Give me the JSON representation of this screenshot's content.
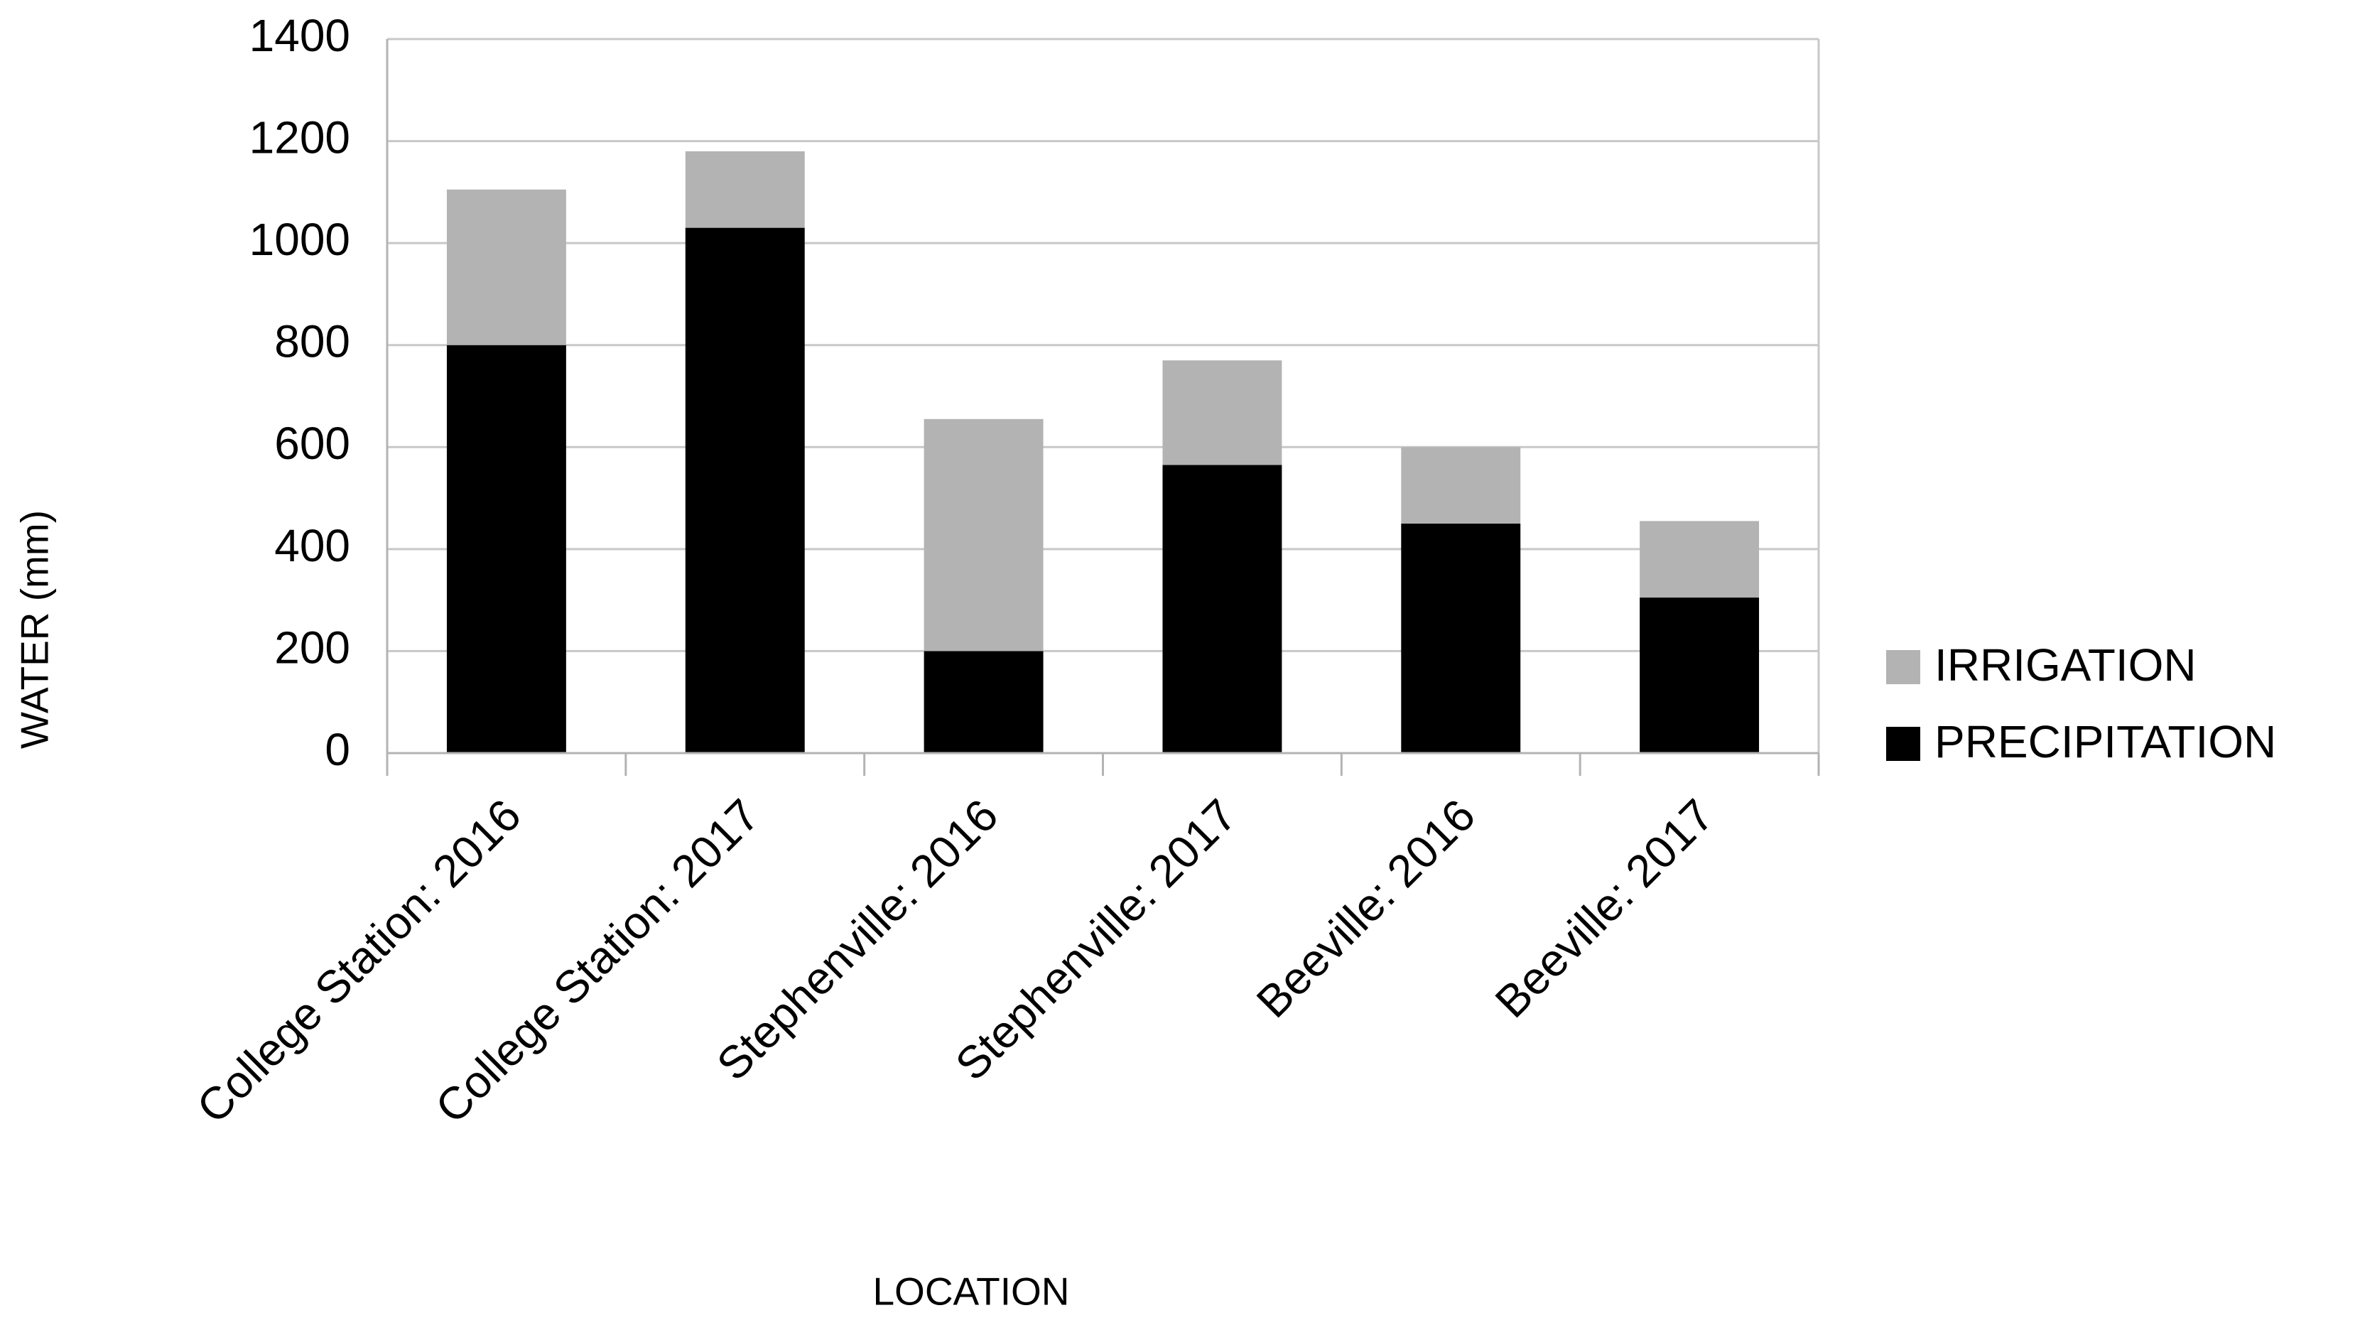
{
  "chart_data": {
    "type": "stacked_bar",
    "x_label": "LOCATION",
    "y_label": "WATER (mm)",
    "categories": [
      "College Station: 2016",
      "College Station: 2017",
      "Stephenville: 2016",
      "Stephenville: 2017",
      "Beeville: 2016",
      "Beeville: 2017"
    ],
    "series": [
      {
        "name": "PRECIPITATION",
        "color": "#000000",
        "values": [
          800,
          1030,
          200,
          565,
          450,
          305
        ]
      },
      {
        "name": "IRRIGATION",
        "color": "#b3b3b3",
        "values": [
          305,
          150,
          455,
          205,
          150,
          150
        ]
      }
    ],
    "ylim": [
      0,
      1400
    ],
    "yticks": [
      0,
      200,
      400,
      600,
      800,
      1000,
      1200,
      1400
    ],
    "grid": true,
    "legend": "right"
  }
}
